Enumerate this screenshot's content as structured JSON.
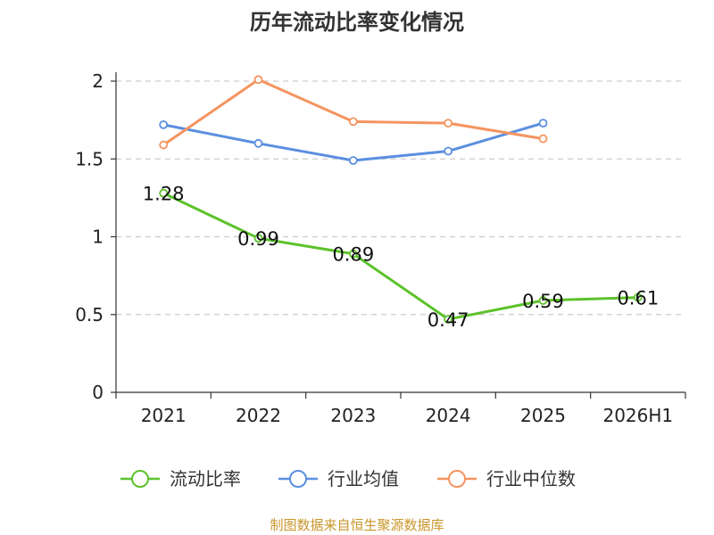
{
  "chart_data": {
    "type": "line",
    "title": "历年流动比率变化情况",
    "categories": [
      "2021",
      "2022",
      "2023",
      "2024",
      "2025",
      "2026H1"
    ],
    "ylim": [
      0,
      2
    ],
    "yticks": [
      "0",
      "0.5",
      "1",
      "1.5",
      "2"
    ],
    "grid": "horizontal dashed",
    "legend_position": "bottom",
    "series": [
      {
        "name": "流动比率",
        "color": "#5cc22a",
        "values": [
          1.28,
          0.99,
          0.89,
          0.47,
          0.59,
          0.61
        ],
        "labels": [
          "1.28",
          "0.99",
          "0.89",
          "0.47",
          "0.59",
          "0.61"
        ],
        "show_labels": true
      },
      {
        "name": "行业均值",
        "color": "#5b8fe0",
        "values": [
          1.72,
          1.6,
          1.49,
          1.55,
          1.73,
          null
        ],
        "show_labels": false
      },
      {
        "name": "行业中位数",
        "color": "#f59460",
        "values": [
          1.59,
          2.01,
          1.74,
          1.73,
          1.63,
          null
        ],
        "show_labels": false
      }
    ],
    "source": "制图数据来自恒生聚源数据库"
  }
}
